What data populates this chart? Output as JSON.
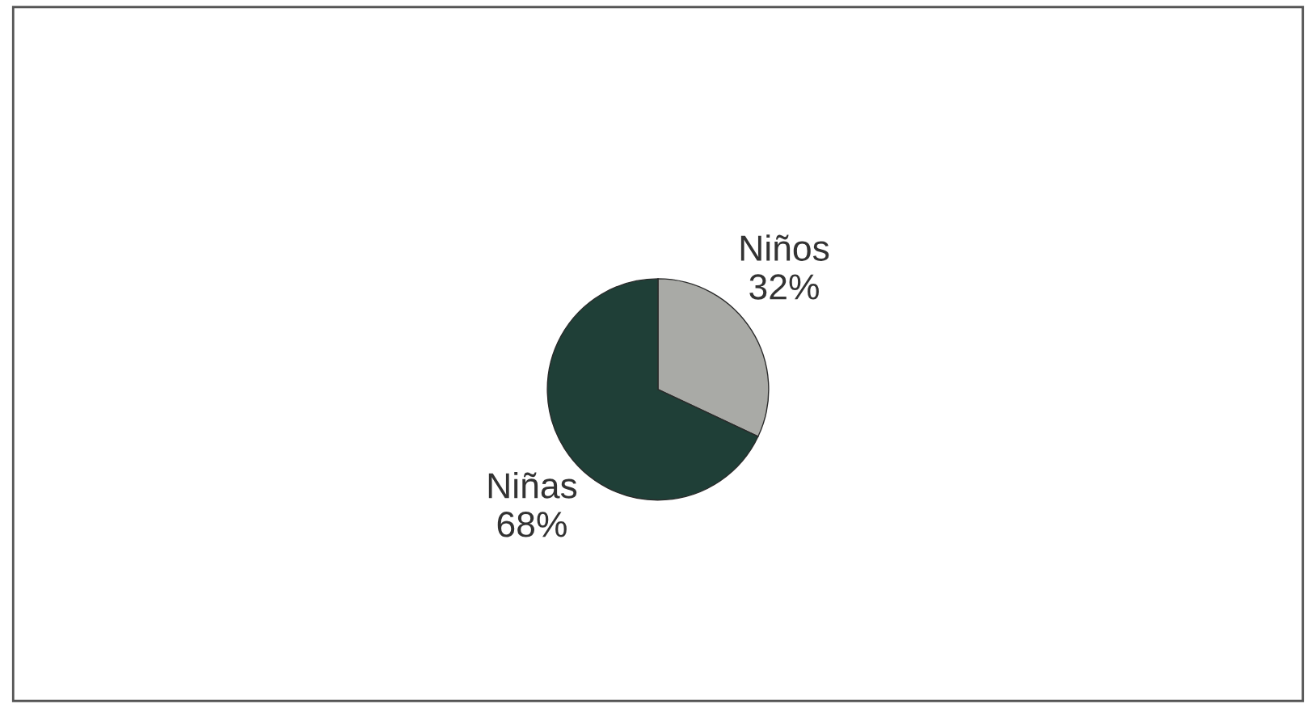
{
  "chart_data": {
    "type": "pie",
    "categories": [
      "Niños",
      "Niñas"
    ],
    "values": [
      32,
      68
    ],
    "value_labels": [
      "32%",
      "68%"
    ],
    "colors": [
      "#a9aaa6",
      "#1f3f37"
    ],
    "legend": false
  }
}
